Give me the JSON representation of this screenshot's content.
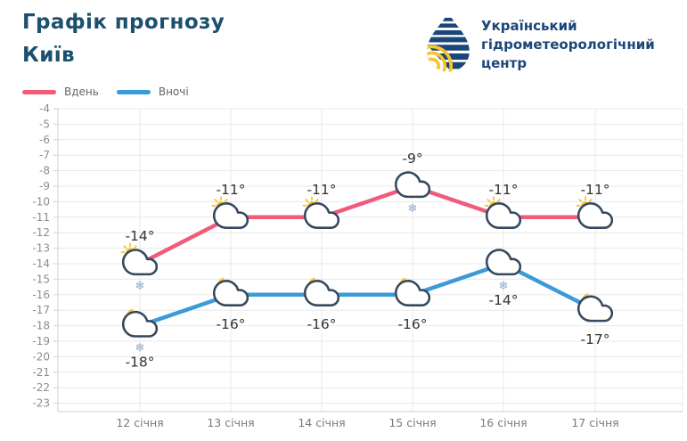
{
  "header": {
    "title": "Графік прогнозу",
    "city": "Київ"
  },
  "brand": {
    "name_lines": [
      "Український",
      "гідрометеорологічний",
      "центр"
    ]
  },
  "legend": {
    "items": [
      {
        "label": "Вдень",
        "color": "#f15b7a"
      },
      {
        "label": "Вночі",
        "color": "#3a9bd8"
      }
    ]
  },
  "chart_data": {
    "type": "line",
    "title": "Графік прогнозу Київ",
    "categories": [
      "12 січня",
      "13 січня",
      "14 січня",
      "15 січня",
      "16 січня",
      "17 січня"
    ],
    "series": [
      {
        "name": "Вдень",
        "color": "#f15b7a",
        "values": [
          -14,
          -11,
          -11,
          -9,
          -11,
          -11
        ],
        "icons": [
          "sun-behind-cloud",
          "sun-behind-cloud",
          "sun-behind-cloud",
          "cloud",
          "sun-behind-cloud",
          "sun-behind-cloud"
        ],
        "snowflake": [
          true,
          false,
          false,
          true,
          false,
          false
        ],
        "label_position": "above"
      },
      {
        "name": "Вночі",
        "color": "#3a9bd8",
        "values": [
          -18,
          -16,
          -16,
          -16,
          -14,
          -17
        ],
        "icons": [
          "moon-behind-cloud",
          "moon-behind-cloud",
          "moon-behind-cloud",
          "moon-behind-cloud",
          "cloud",
          "moon-behind-cloud"
        ],
        "snowflake": [
          true,
          false,
          false,
          false,
          true,
          false
        ],
        "label_position": "below"
      }
    ],
    "unit": "°",
    "ylim": [
      -23,
      -4
    ],
    "y_ticks": [
      -4,
      -5,
      -6,
      -7,
      -8,
      -9,
      -10,
      -11,
      -12,
      -13,
      -14,
      -15,
      -16,
      -17,
      -18,
      -19,
      -20,
      -21,
      -22,
      -23
    ],
    "grid": true,
    "legend_position": "top-left",
    "xlabel": "",
    "ylabel": ""
  },
  "colors": {
    "title": "#1b506e",
    "brand_text": "#1a4678",
    "brand_yellow": "#f8c52c",
    "icon_outline": "#35495e",
    "sun_moon": "#f7c430",
    "snowflake": "#8fa6bf",
    "gridline": "#e8e8e8",
    "axis_line": "#cfcfcf",
    "axis_label": "#8d8d8d",
    "x_label": "#7a7a7a",
    "value_label": "#333333",
    "background": "#ffffff"
  }
}
